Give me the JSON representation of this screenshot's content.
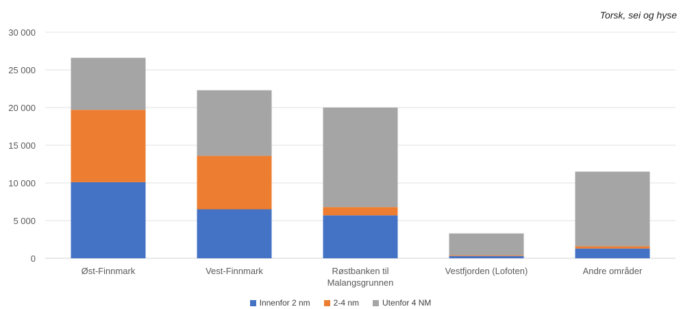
{
  "chart_data": {
    "type": "bar",
    "stacked": true,
    "title": "Torsk, sei og hyse",
    "categories": [
      "Øst-Finnmark",
      "Vest-Finnmark",
      "Røstbanken til Malangsgrunnen",
      "Vestfjorden (Lofoten)",
      "Andre områder"
    ],
    "series": [
      {
        "name": "Innenfor 2 nm",
        "color": "#4472C4",
        "values": [
          10100,
          6500,
          5700,
          300,
          1300
        ]
      },
      {
        "name": "2-4 nm",
        "color": "#ED7D31",
        "values": [
          9600,
          7100,
          1100,
          100,
          300
        ]
      },
      {
        "name": "Utenfor 4 NM",
        "color": "#A5A5A5",
        "values": [
          6900,
          8700,
          13200,
          2900,
          9900
        ]
      }
    ],
    "ylim": [
      0,
      30000
    ],
    "yticks": [
      0,
      5000,
      10000,
      15000,
      20000,
      25000,
      30000
    ],
    "ytick_labels": [
      "0",
      "5 000",
      "10 000",
      "15 000",
      "20 000",
      "25 000",
      "30 000"
    ],
    "grid": true,
    "legend_position": "bottom"
  }
}
